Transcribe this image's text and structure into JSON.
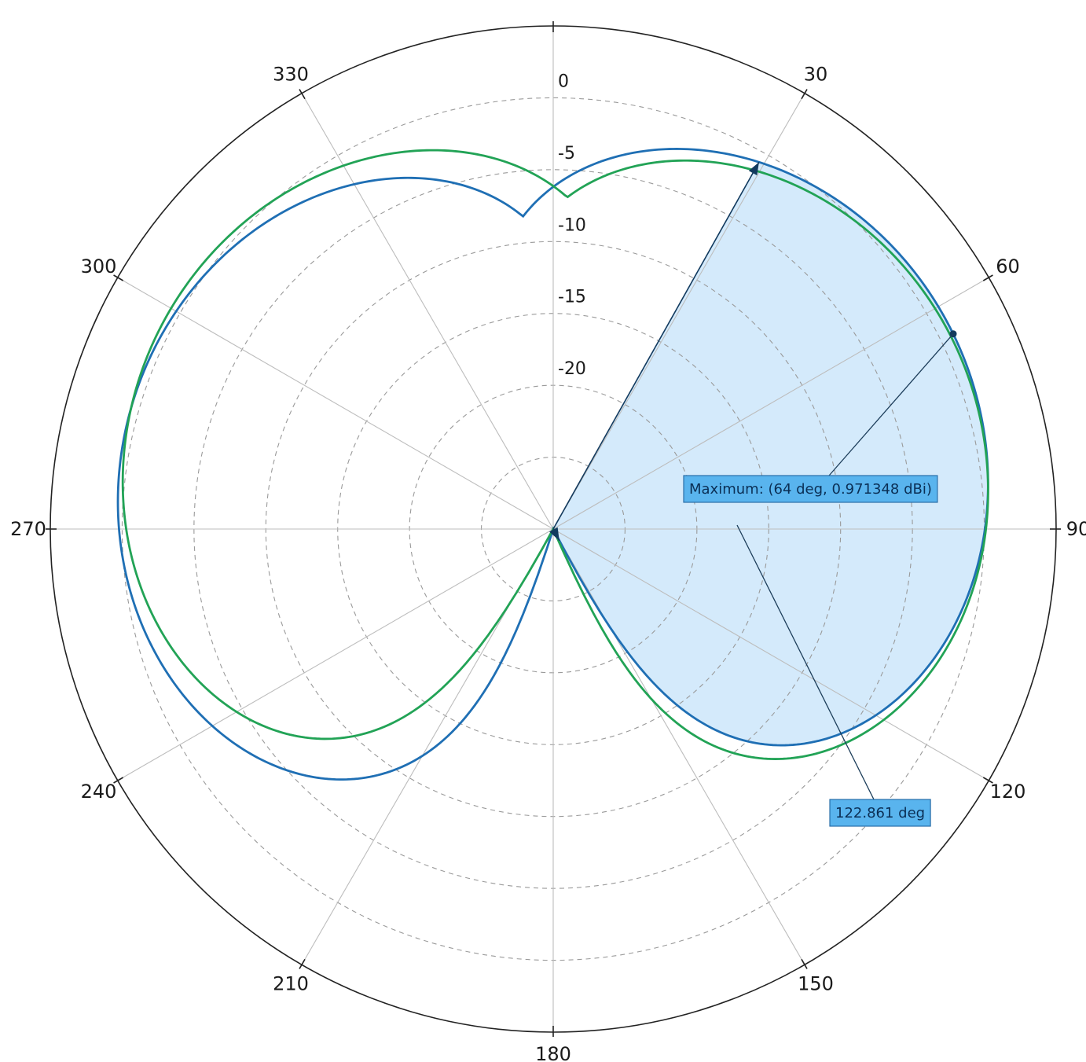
{
  "chart_data": {
    "type": "polar",
    "angle_direction": "clockwise",
    "angle_zero": "top",
    "angle_ticks": [
      0,
      30,
      60,
      90,
      120,
      150,
      180,
      210,
      240,
      270,
      300,
      330
    ],
    "angle_tick_labels": [
      "",
      "30",
      "60",
      "90",
      "120",
      "150",
      "180",
      "210",
      "240",
      "270",
      "300",
      "330"
    ],
    "r_ticks": [
      0,
      -5,
      -10,
      -15,
      -20
    ],
    "r_tick_labels": [
      "0",
      "-5",
      "-10",
      "-15",
      "-20"
    ],
    "r_lim": [
      -30,
      5
    ],
    "r_label_angle": 0,
    "grid": true,
    "series": [
      {
        "color": "#1f6fb4",
        "pattern": "2*sin(theta)^2 per lobe, deep null at 0 and 180",
        "lobes": [
          {
            "center_deg": 64,
            "peak_dbi": 0.97,
            "floor_dbi": -30,
            "half_width_deg": 90
          },
          {
            "center_deg": 286,
            "peak_dbi": 0.56,
            "floor_dbi": -30,
            "half_width_deg": 90
          }
        ]
      },
      {
        "color": "#22a356",
        "pattern": "2*sin(theta)^2 per lobe, deep null at 0 and 180",
        "lobes": [
          {
            "center_deg": 68,
            "peak_dbi": 0.77,
            "floor_dbi": -30,
            "half_width_deg": 90
          },
          {
            "center_deg": 297,
            "peak_dbi": 0.72,
            "floor_dbi": -30,
            "half_width_deg": 90
          }
        ]
      }
    ],
    "beamwidth": {
      "start_deg": 29.3,
      "end_deg": 152.2,
      "radius_dbi": -3.0,
      "fill": "#cfe8fb"
    },
    "maximum_marker": {
      "angle_deg": 64,
      "value_dbi": 0.971348
    },
    "annotations": {
      "maximum": "Maximum: (64 deg, 0.971348 dBi)",
      "beamwidth": "122.861 deg"
    }
  }
}
